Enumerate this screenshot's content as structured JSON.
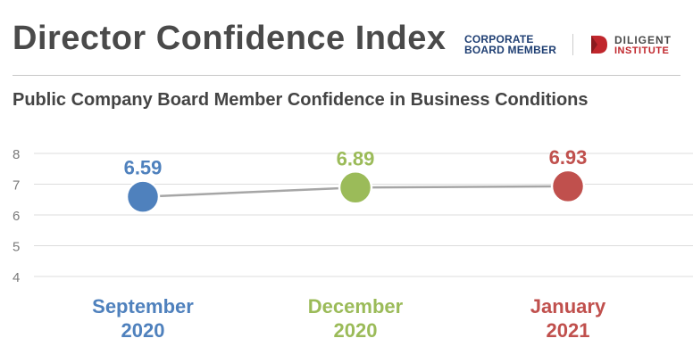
{
  "header": {
    "title": "Director Confidence Index",
    "logo_cbm_line1": "CORPORATE",
    "logo_cbm_line2": "BOARD MEMBER",
    "logo_diligent_line1": "DILIGENT",
    "logo_diligent_line2": "INSTITUTE"
  },
  "chart_data": {
    "type": "line",
    "title": "Public Company Board Member Confidence in Business Conditions",
    "categories": [
      {
        "line1": "September",
        "line2": "2020"
      },
      {
        "line1": "December",
        "line2": "2020"
      },
      {
        "line1": "January",
        "line2": "2021"
      }
    ],
    "values": [
      6.59,
      6.89,
      6.93
    ],
    "value_labels": [
      "6.59",
      "6.89",
      "6.93"
    ],
    "point_colors": [
      "#4f81bd",
      "#9bbb59",
      "#c0504d"
    ],
    "line_color": "#a6a6a6",
    "yticks": [
      8,
      7,
      6,
      5,
      4
    ],
    "ylim": [
      4,
      8
    ],
    "grid": true,
    "xlabel": "",
    "ylabel": ""
  }
}
